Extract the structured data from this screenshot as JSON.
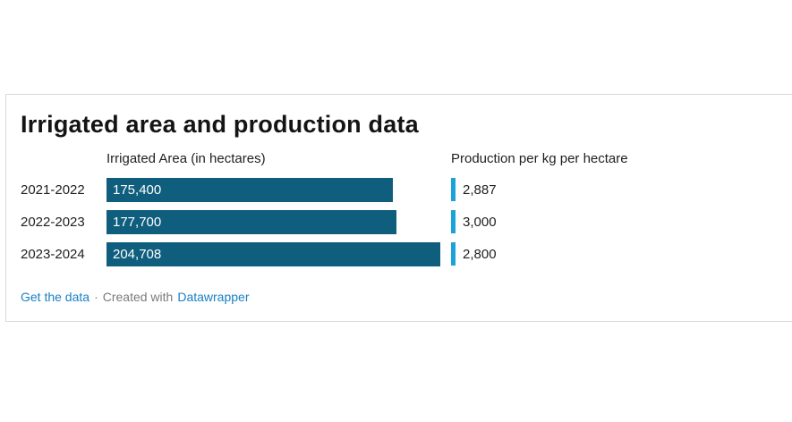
{
  "title": "Irrigated area and production data",
  "chart_data": {
    "type": "bar",
    "title": "Irrigated area and production data",
    "categories": [
      "2021-2022",
      "2022-2023",
      "2023-2024"
    ],
    "series": [
      {
        "name": "Irrigated Area (in hectares)",
        "values": [
          175400,
          177700,
          204708
        ],
        "labels": [
          "175,400",
          "177,700",
          "204,708"
        ]
      },
      {
        "name": "Production per kg per hectare",
        "values": [
          2887,
          3000,
          2800
        ],
        "labels": [
          "2,887",
          "3,000",
          "2,800"
        ]
      }
    ],
    "xlim": [
      0,
      204708
    ],
    "grid": "off",
    "legend": "none",
    "colors": {
      "bar": "#0f5e7e",
      "tick": "#1ba3d9"
    }
  },
  "footer": {
    "get_the_data": "Get the data",
    "dot": "·",
    "created_with": "Created with",
    "brand": "Datawrapper"
  }
}
